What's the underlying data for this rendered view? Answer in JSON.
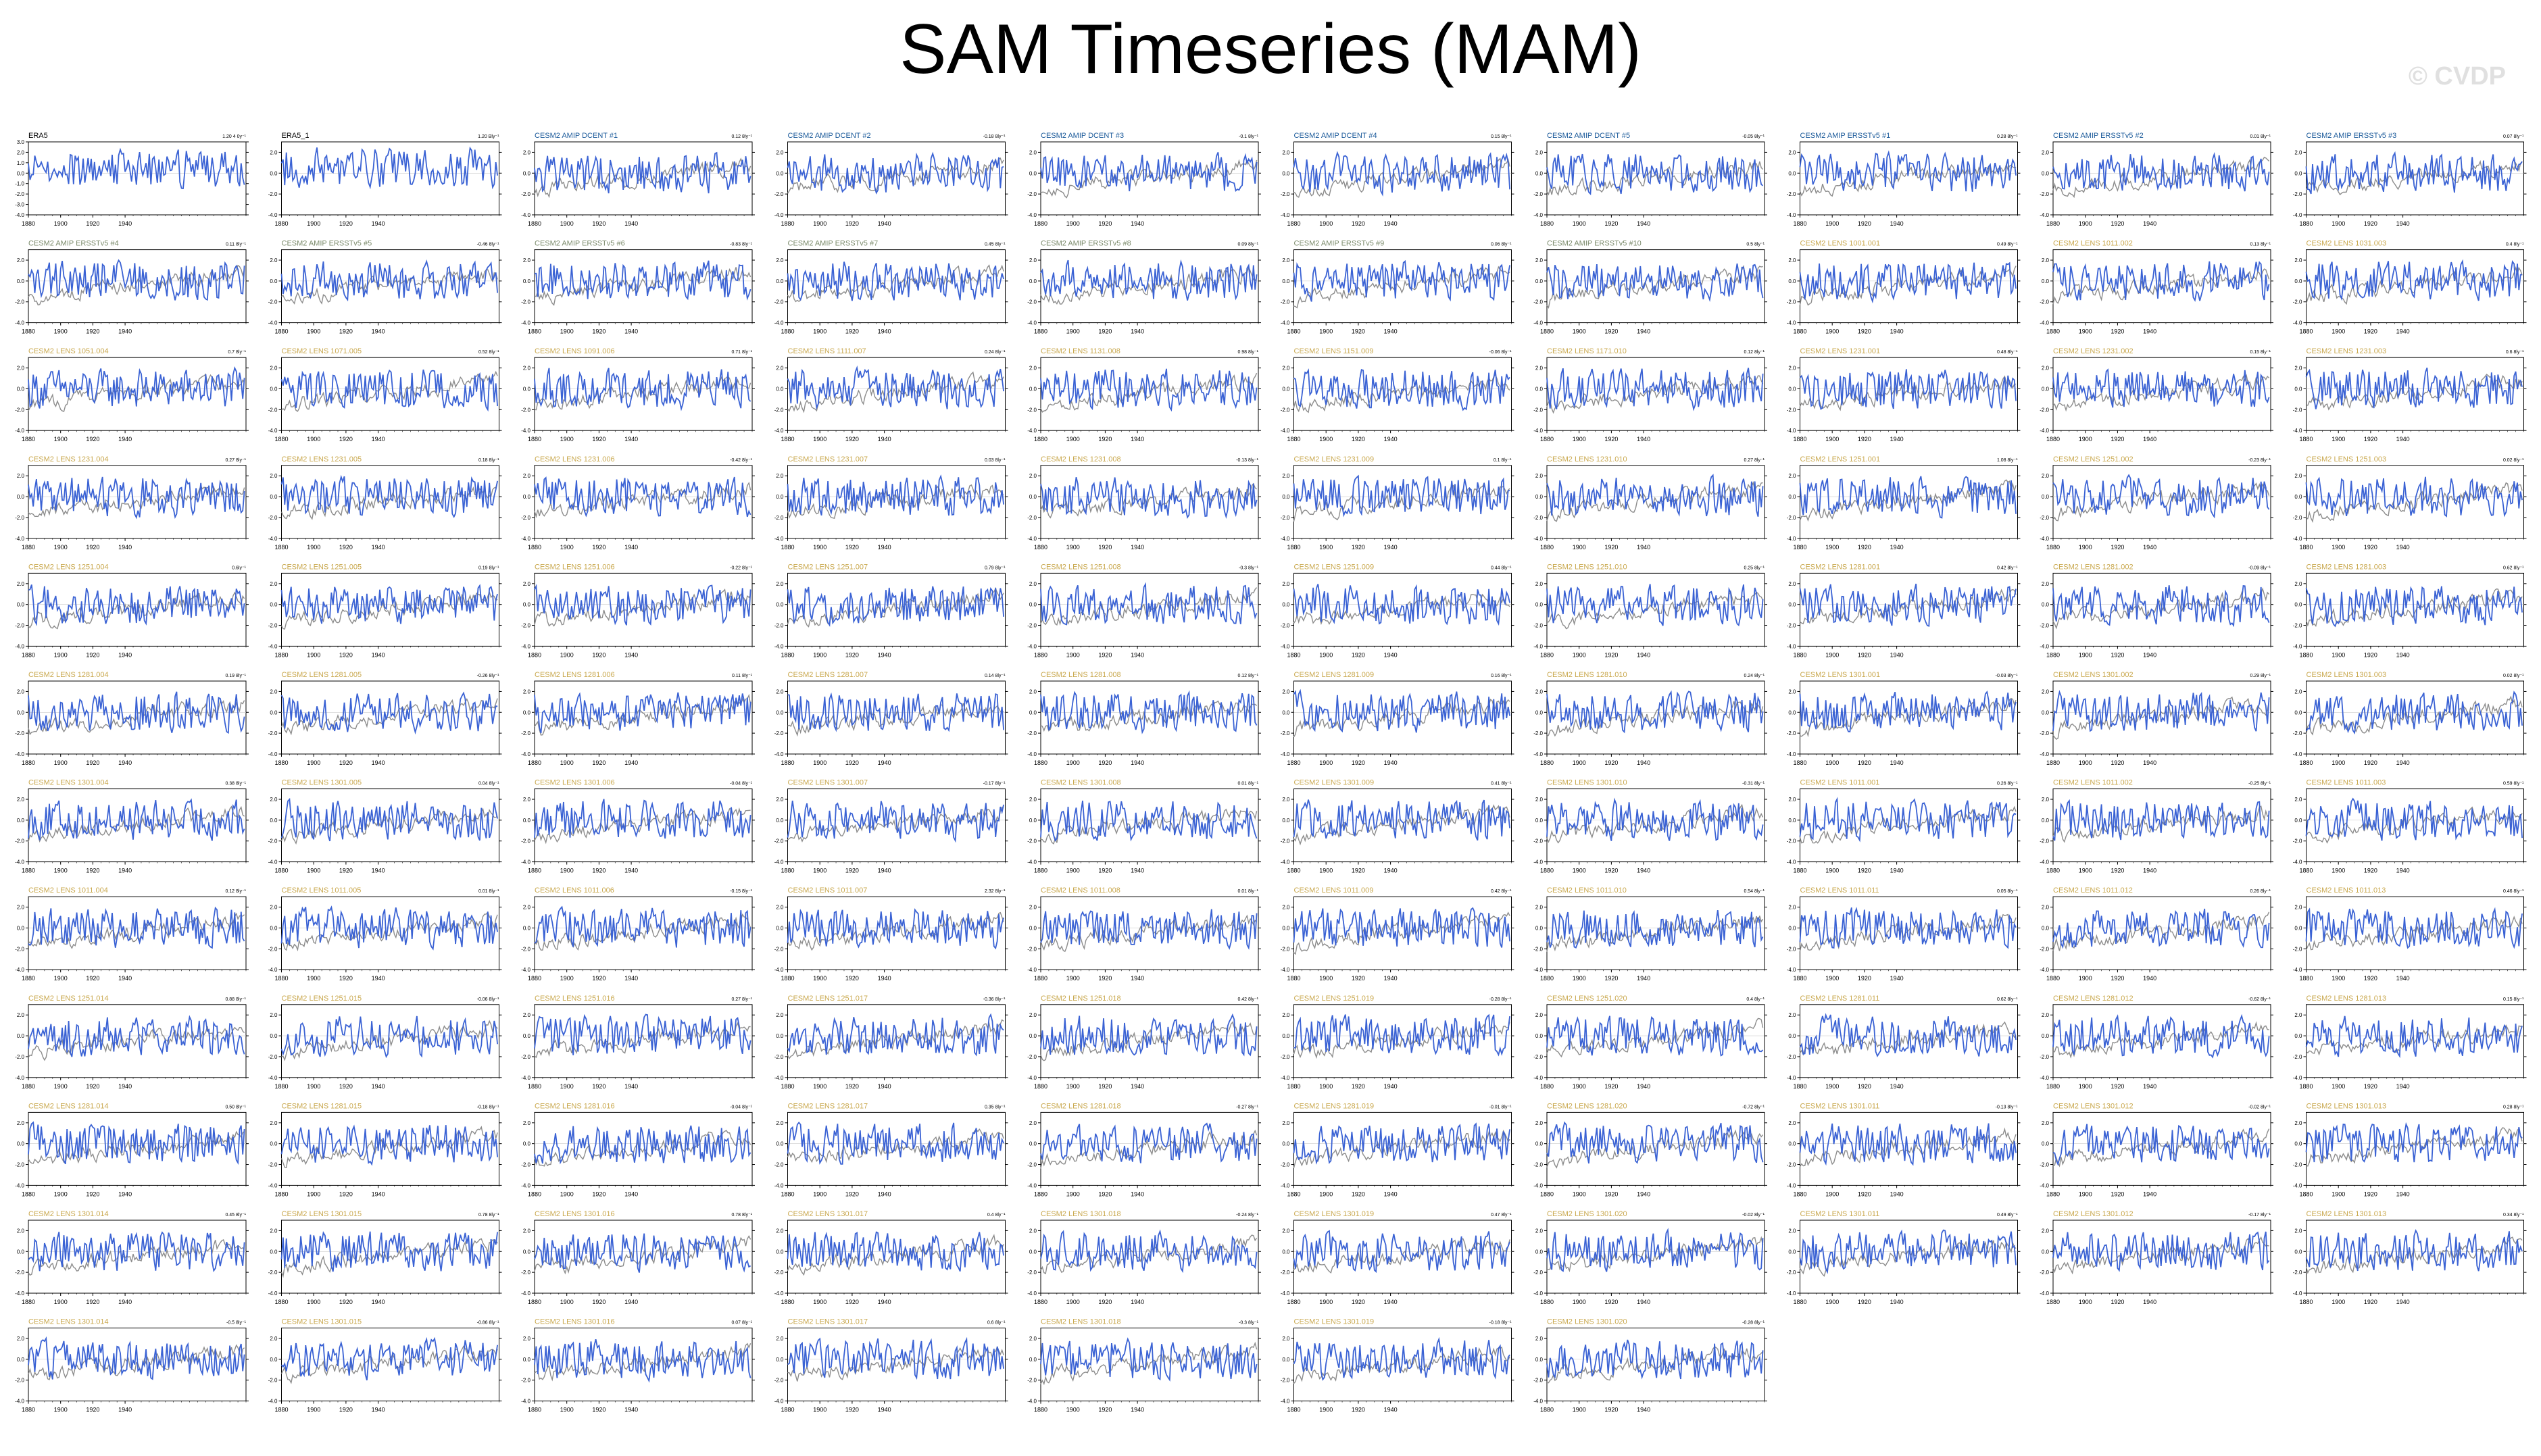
{
  "title": "SAM Timeseries (MAM)",
  "watermark": "© CVDP",
  "colors": {
    "model_line": "#3a62d4",
    "obs_line": "#8c8c8c",
    "first_row_title": "#1b5a9a",
    "lens_title": "#c9a84e",
    "ersst_title": "#7a8a6a",
    "axis": "#000000"
  },
  "chart_data": {
    "type": "line",
    "x_ticks": [
      1880,
      1900,
      1920,
      1940
    ],
    "xlim": [
      1880,
      2015
    ],
    "ylim": [
      -4.0,
      3.0
    ],
    "y_ticks_first": [
      "3.0",
      "2.0",
      "1.0",
      "0.0",
      "-1.0",
      "-2.0",
      "-3.0",
      "-4.0"
    ],
    "y_ticks": [
      "2.0",
      "0.0",
      "-2.0",
      "-4.0"
    ],
    "panels": [
      {
        "title": "ERA5",
        "trend": "1.20 4 0y⁻¹",
        "style": "obs"
      },
      {
        "title": "ERA5_1",
        "trend": "1.20 Bly⁻¹",
        "style": "obs"
      },
      {
        "title": "CESM2 AMIP DCENT #1",
        "trend": "0.12 8ly⁻¹",
        "style": "first"
      },
      {
        "title": "CESM2 AMIP DCENT #2",
        "trend": "-0.18 8ly⁻¹",
        "style": "first"
      },
      {
        "title": "CESM2 AMIP DCENT #3",
        "trend": "-0.1 8ly⁻¹",
        "style": "first"
      },
      {
        "title": "CESM2 AMIP DCENT #4",
        "trend": "0.15 8ly⁻¹",
        "style": "first"
      },
      {
        "title": "CESM2 AMIP DCENT #5",
        "trend": "-0.05 8ly⁻¹",
        "style": "first"
      },
      {
        "title": "CESM2 AMIP ERSSTv5 #1",
        "trend": "0.28 8ly⁻¹",
        "style": "first"
      },
      {
        "title": "CESM2 AMIP ERSSTv5 #2",
        "trend": "0.01 8ly⁻¹",
        "style": "first"
      },
      {
        "title": "CESM2 AMIP ERSSTv5 #3",
        "trend": "0.07 8ly⁻¹",
        "style": "first"
      },
      {
        "title": "CESM2 AMIP ERSSTv5 #4",
        "trend": "0.11 8ly⁻¹",
        "style": "ersst"
      },
      {
        "title": "CESM2 AMIP ERSSTv5 #5",
        "trend": "-0.46 8ly⁻¹",
        "style": "ersst"
      },
      {
        "title": "CESM2 AMIP ERSSTv5 #6",
        "trend": "-0.83 8ly⁻¹",
        "style": "ersst"
      },
      {
        "title": "CESM2 AMIP ERSSTv5 #7",
        "trend": "0.45 8ly⁻¹",
        "style": "ersst"
      },
      {
        "title": "CESM2 AMIP ERSSTv5 #8",
        "trend": "0.09 8ly⁻¹",
        "style": "ersst"
      },
      {
        "title": "CESM2 AMIP ERSSTv5 #9",
        "trend": "0.06 8ly⁻¹",
        "style": "ersst"
      },
      {
        "title": "CESM2 AMIP ERSSTv5 #10",
        "trend": "0.5 8ly⁻¹",
        "style": "ersst"
      },
      {
        "title": "CESM2 LENS 1001.001",
        "trend": "0.49 8ly⁻¹",
        "style": "lens"
      },
      {
        "title": "CESM2 LENS 1011.002",
        "trend": "0.13 8ly⁻¹",
        "style": "lens"
      },
      {
        "title": "CESM2 LENS 1031.003",
        "trend": "0.4 8ly⁻¹",
        "style": "lens"
      },
      {
        "title": "CESM2 LENS 1051.004",
        "trend": "0.7 8ly⁻¹",
        "style": "lens"
      },
      {
        "title": "CESM2 LENS 1071.005",
        "trend": "0.52 8ly⁻¹",
        "style": "lens"
      },
      {
        "title": "CESM2 LENS 1091.006",
        "trend": "0.71 8ly⁻¹",
        "style": "lens"
      },
      {
        "title": "CESM2 LENS 1111.007",
        "trend": "0.24 8ly⁻¹",
        "style": "lens"
      },
      {
        "title": "CESM2 LENS 1131.008",
        "trend": "0.98 8ly⁻¹",
        "style": "lens"
      },
      {
        "title": "CESM2 LENS 1151.009",
        "trend": "-0.06 8ly⁻¹",
        "style": "lens"
      },
      {
        "title": "CESM2 LENS 1171.010",
        "trend": "0.12 8ly⁻¹",
        "style": "lens"
      },
      {
        "title": "CESM2 LENS 1231.001",
        "trend": "0.48 8ly⁻¹",
        "style": "lens"
      },
      {
        "title": "CESM2 LENS 1231.002",
        "trend": "0.15 8ly⁻¹",
        "style": "lens"
      },
      {
        "title": "CESM2 LENS 1231.003",
        "trend": "0.6 8ly⁻¹",
        "style": "lens"
      },
      {
        "title": "CESM2 LENS 1231.004",
        "trend": "0.27 8ly⁻¹",
        "style": "lens"
      },
      {
        "title": "CESM2 LENS 1231.005",
        "trend": "0.18 8ly⁻¹",
        "style": "lens"
      },
      {
        "title": "CESM2 LENS 1231.006",
        "trend": "-0.42 8ly⁻¹",
        "style": "lens"
      },
      {
        "title": "CESM2 LENS 1231.007",
        "trend": "0.03 8ly⁻¹",
        "style": "lens"
      },
      {
        "title": "CESM2 LENS 1231.008",
        "trend": "-0.13 8ly⁻¹",
        "style": "lens"
      },
      {
        "title": "CESM2 LENS 1231.009",
        "trend": "0.1 8ly⁻¹",
        "style": "lens"
      },
      {
        "title": "CESM2 LENS 1231.010",
        "trend": "0.27 8ly⁻¹",
        "style": "lens"
      },
      {
        "title": "CESM2 LENS 1251.001",
        "trend": "1.08 8ly⁻¹",
        "style": "lens"
      },
      {
        "title": "CESM2 LENS 1251.002",
        "trend": "-0.23 8ly⁻¹",
        "style": "lens"
      },
      {
        "title": "CESM2 LENS 1251.003",
        "trend": "0.02 8ly⁻¹",
        "style": "lens"
      },
      {
        "title": "CESM2 LENS 1251.004",
        "trend": "0.6ly⁻¹",
        "style": "lens"
      },
      {
        "title": "CESM2 LENS 1251.005",
        "trend": "0.19 8ly⁻¹",
        "style": "lens"
      },
      {
        "title": "CESM2 LENS 1251.006",
        "trend": "-0.22 8ly⁻¹",
        "style": "lens"
      },
      {
        "title": "CESM2 LENS 1251.007",
        "trend": "0.79 8ly⁻¹",
        "style": "lens"
      },
      {
        "title": "CESM2 LENS 1251.008",
        "trend": "-0.3 8ly⁻¹",
        "style": "lens"
      },
      {
        "title": "CESM2 LENS 1251.009",
        "trend": "0.44 8ly⁻¹",
        "style": "lens"
      },
      {
        "title": "CESM2 LENS 1251.010",
        "trend": "0.25 8ly⁻¹",
        "style": "lens"
      },
      {
        "title": "CESM2 LENS 1281.001",
        "trend": "0.42 8ly⁻¹",
        "style": "lens"
      },
      {
        "title": "CESM2 LENS 1281.002",
        "trend": "-0.09 8ly⁻¹",
        "style": "lens"
      },
      {
        "title": "CESM2 LENS 1281.003",
        "trend": "0.62 8ly⁻¹",
        "style": "lens"
      },
      {
        "title": "CESM2 LENS 1281.004",
        "trend": "0.19 8ly⁻¹",
        "style": "lens"
      },
      {
        "title": "CESM2 LENS 1281.005",
        "trend": "-0.26 8ly⁻¹",
        "style": "lens"
      },
      {
        "title": "CESM2 LENS 1281.006",
        "trend": "0.11 8ly⁻¹",
        "style": "lens"
      },
      {
        "title": "CESM2 LENS 1281.007",
        "trend": "0.14 8ly⁻¹",
        "style": "lens"
      },
      {
        "title": "CESM2 LENS 1281.008",
        "trend": "0.12 8ly⁻¹",
        "style": "lens"
      },
      {
        "title": "CESM2 LENS 1281.009",
        "trend": "0.16 8ly⁻¹",
        "style": "lens"
      },
      {
        "title": "CESM2 LENS 1281.010",
        "trend": "0.24 8ly⁻¹",
        "style": "lens"
      },
      {
        "title": "CESM2 LENS 1301.001",
        "trend": "-0.03 8ly⁻¹",
        "style": "lens"
      },
      {
        "title": "CESM2 LENS 1301.002",
        "trend": "0.29 8ly⁻¹",
        "style": "lens"
      },
      {
        "title": "CESM2 LENS 1301.003",
        "trend": "0.02 8ly⁻¹",
        "style": "lens"
      },
      {
        "title": "CESM2 LENS 1301.004",
        "trend": "0.38 8ly⁻¹",
        "style": "lens"
      },
      {
        "title": "CESM2 LENS 1301.005",
        "trend": "0.04 8ly⁻¹",
        "style": "lens"
      },
      {
        "title": "CESM2 LENS 1301.006",
        "trend": "-0.04 8ly⁻¹",
        "style": "lens"
      },
      {
        "title": "CESM2 LENS 1301.007",
        "trend": "-0.17 8ly⁻¹",
        "style": "lens"
      },
      {
        "title": "CESM2 LENS 1301.008",
        "trend": "0.01 8ly⁻¹",
        "style": "lens"
      },
      {
        "title": "CESM2 LENS 1301.009",
        "trend": "0.41 8ly⁻¹",
        "style": "lens"
      },
      {
        "title": "CESM2 LENS 1301.010",
        "trend": "-0.31 8ly⁻¹",
        "style": "lens"
      },
      {
        "title": "CESM2 LENS 1011.001",
        "trend": "0.26 8ly⁻¹",
        "style": "lens"
      },
      {
        "title": "CESM2 LENS 1011.002",
        "trend": "-0.25 8ly⁻¹",
        "style": "lens"
      },
      {
        "title": "CESM2 LENS 1011.003",
        "trend": "0.59 8ly⁻¹",
        "style": "lens"
      },
      {
        "title": "CESM2 LENS 1011.004",
        "trend": "0.12 8ly⁻¹",
        "style": "lens"
      },
      {
        "title": "CESM2 LENS 1011.005",
        "trend": "0.01 8ly⁻¹",
        "style": "lens"
      },
      {
        "title": "CESM2 LENS 1011.006",
        "trend": "-0.15 8ly⁻¹",
        "style": "lens"
      },
      {
        "title": "CESM2 LENS 1011.007",
        "trend": "2.32 8ly⁻¹",
        "style": "lens"
      },
      {
        "title": "CESM2 LENS 1011.008",
        "trend": "0.01 8ly⁻¹",
        "style": "lens"
      },
      {
        "title": "CESM2 LENS 1011.009",
        "trend": "0.42 8ly⁻¹",
        "style": "lens"
      },
      {
        "title": "CESM2 LENS 1011.010",
        "trend": "0.54 8ly⁻¹",
        "style": "lens"
      },
      {
        "title": "CESM2 LENS 1011.011",
        "trend": "0.05 8ly⁻¹",
        "style": "lens"
      },
      {
        "title": "CESM2 LENS 1011.012",
        "trend": "0.26 8ly⁻¹",
        "style": "lens"
      },
      {
        "title": "CESM2 LENS 1011.013",
        "trend": "0.46 8ly⁻¹",
        "style": "lens"
      },
      {
        "title": "CESM2 LENS 1251.014",
        "trend": "0.88 8ly⁻¹",
        "style": "lens"
      },
      {
        "title": "CESM2 LENS 1251.015",
        "trend": "-0.06 8ly⁻¹",
        "style": "lens"
      },
      {
        "title": "CESM2 LENS 1251.016",
        "trend": "0.27 8ly⁻¹",
        "style": "lens"
      },
      {
        "title": "CESM2 LENS 1251.017",
        "trend": "-0.36 8ly⁻¹",
        "style": "lens"
      },
      {
        "title": "CESM2 LENS 1251.018",
        "trend": "0.42 8ly⁻¹",
        "style": "lens"
      },
      {
        "title": "CESM2 LENS 1251.019",
        "trend": "-0.28 8ly⁻¹",
        "style": "lens"
      },
      {
        "title": "CESM2 LENS 1251.020",
        "trend": "0.4 8ly⁻¹",
        "style": "lens"
      },
      {
        "title": "CESM2 LENS 1281.011",
        "trend": "0.62 8ly⁻¹",
        "style": "lens"
      },
      {
        "title": "CESM2 LENS 1281.012",
        "trend": "-0.62 8ly⁻¹",
        "style": "lens"
      },
      {
        "title": "CESM2 LENS 1281.013",
        "trend": "0.15 8ly⁻¹",
        "style": "lens"
      },
      {
        "title": "CESM2 LENS 1281.014",
        "trend": "0.50 8ly⁻¹",
        "style": "lens"
      },
      {
        "title": "CESM2 LENS 1281.015",
        "trend": "-0.18 8ly⁻¹",
        "style": "lens"
      },
      {
        "title": "CESM2 LENS 1281.016",
        "trend": "-0.04 8ly⁻¹",
        "style": "lens"
      },
      {
        "title": "CESM2 LENS 1281.017",
        "trend": "0.35 8ly⁻¹",
        "style": "lens"
      },
      {
        "title": "CESM2 LENS 1281.018",
        "trend": "-0.27 8ly⁻¹",
        "style": "lens"
      },
      {
        "title": "CESM2 LENS 1281.019",
        "trend": "-0.01 8ly⁻¹",
        "style": "lens"
      },
      {
        "title": "CESM2 LENS 1281.020",
        "trend": "-0.72 8ly⁻¹",
        "style": "lens"
      },
      {
        "title": "CESM2 LENS 1301.011",
        "trend": "-0.13 8ly⁻¹",
        "style": "lens"
      },
      {
        "title": "CESM2 LENS 1301.012",
        "trend": "-0.02 8ly⁻¹",
        "style": "lens"
      },
      {
        "title": "CESM2 LENS 1301.013",
        "trend": "0.28 8ly⁻¹",
        "style": "lens"
      },
      {
        "title": "CESM2 LENS 1301.014",
        "trend": "0.45 8ly⁻¹",
        "style": "lens"
      },
      {
        "title": "CESM2 LENS 1301.015",
        "trend": "0.78 8ly⁻¹",
        "style": "lens"
      },
      {
        "title": "CESM2 LENS 1301.016",
        "trend": "0.78 8ly⁻¹",
        "style": "lens"
      },
      {
        "title": "CESM2 LENS 1301.017",
        "trend": "0.4 8ly⁻¹",
        "style": "lens"
      },
      {
        "title": "CESM2 LENS 1301.018",
        "trend": "-0.24 8ly⁻¹",
        "style": "lens"
      },
      {
        "title": "CESM2 LENS 1301.019",
        "trend": "0.47 8ly⁻¹",
        "style": "lens"
      },
      {
        "title": "CESM2 LENS 1301.020",
        "trend": "-0.02 8ly⁻¹",
        "style": "lens"
      },
      {
        "title": "CESM2 LENS 1301.011",
        "trend": "0.49 8ly⁻¹",
        "style": "lens"
      },
      {
        "title": "CESM2 LENS 1301.012",
        "trend": "-0.17 8ly⁻¹",
        "style": "lens"
      },
      {
        "title": "CESM2 LENS 1301.013",
        "trend": "0.34 8ly⁻¹",
        "style": "lens"
      },
      {
        "title": "CESM2 LENS 1301.014",
        "trend": "-0.5 8ly⁻¹",
        "style": "lens"
      },
      {
        "title": "CESM2 LENS 1301.015",
        "trend": "-0.86 8ly⁻¹",
        "style": "lens"
      },
      {
        "title": "CESM2 LENS 1301.016",
        "trend": "0.07 8ly⁻¹",
        "style": "lens"
      },
      {
        "title": "CESM2 LENS 1301.017",
        "trend": "0.6 8ly⁻¹",
        "style": "lens"
      },
      {
        "title": "CESM2 LENS 1301.018",
        "trend": "-0.3 8ly⁻¹",
        "style": "lens"
      },
      {
        "title": "CESM2 LENS 1301.019",
        "trend": "-0.18 8ly⁻¹",
        "style": "lens"
      },
      {
        "title": "CESM2 LENS 1301.020",
        "trend": "-0.28 8ly⁻¹",
        "style": "lens"
      }
    ]
  }
}
